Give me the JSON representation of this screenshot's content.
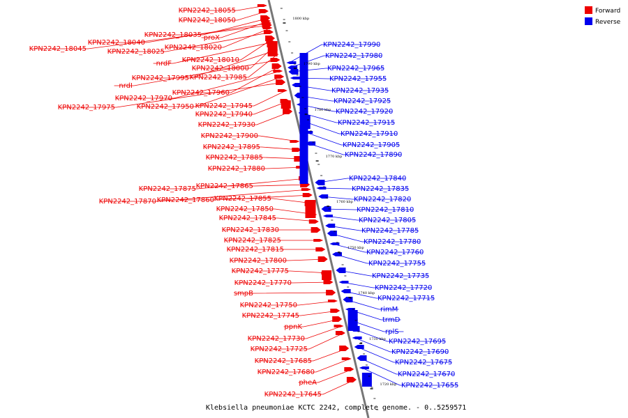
{
  "caption": "Klebsiella pneumoniae KCTC 2242, complete genome. - 0..5259571",
  "legend": [
    {
      "label": "Forward",
      "color": "#ee0000"
    },
    {
      "label": "Reverse",
      "color": "#0000ee"
    }
  ],
  "colors": {
    "forward": "#ee0000",
    "reverse": "#0000ee",
    "backbone": "#777777"
  },
  "ticks": [
    "1800 kbp",
    "1790 kbp",
    "1780 kbp",
    "1770 kbp",
    "1760 kbp",
    "1750 kbp",
    "1740 kbp",
    "1730 kbp",
    "1720 kbp"
  ],
  "forward_labels": [
    "KPN2242_18055",
    "KPN2242_18050",
    "KPN2242_18035",
    "proX",
    "KPN2242_18040",
    "KPN2242_18045",
    "KPN2242_18020",
    "KPN2242_18025",
    "KPN2242_18010",
    "nrdF",
    "KPN2242_18000",
    "KPN2242_17995",
    "KPN2242_17985",
    "nrdI",
    "KPN2242_17960",
    "KPN2242_17970",
    "KPN2242_17950",
    "KPN2242_17975",
    "KPN2242_17945",
    "KPN2242_17940",
    "KPN2242_17930",
    "KPN2242_17900",
    "KPN2242_17895",
    "KPN2242_17885",
    "KPN2242_17880",
    "KPN2242_17875",
    "KPN2242_17865",
    "KPN2242_17870",
    "KPN2242_17860",
    "KPN2242_17855",
    "KPN2242_17850",
    "KPN2242_17845",
    "KPN2242_17830",
    "KPN2242_17825",
    "KPN2242_17815",
    "KPN2242_17800",
    "KPN2242_17775",
    "KPN2242_17770",
    "smpB",
    "KPN2242_17750",
    "KPN2242_17745",
    "ppnK",
    "KPN2242_17730",
    "KPN2242_17725",
    "KPN2242_17685",
    "KPN2242_17680",
    "pheA",
    "KPN2242_17645"
  ],
  "reverse_labels": [
    "KPN2242_17990",
    "KPN2242_17980",
    "KPN2242_17965",
    "KPN2242_17955",
    "KPN2242_17935",
    "KPN2242_17925",
    "KPN2242_17920",
    "KPN2242_17915",
    "KPN2242_17910",
    "KPN2242_17905",
    "KPN2242_17890",
    "KPN2242_17840",
    "KPN2242_17835",
    "KPN2242_17820",
    "KPN2242_17810",
    "KPN2242_17805",
    "KPN2242_17785",
    "KPN2242_17780",
    "KPN2242_17760",
    "KPN2242_17755",
    "KPN2242_17735",
    "KPN2242_17720",
    "KPN2242_17715",
    "rimM",
    "trmD",
    "rplS",
    "KPN2242_17695",
    "KPN2242_17690",
    "KPN2242_17675",
    "KPN2242_17670",
    "KPN2242_17655"
  ]
}
